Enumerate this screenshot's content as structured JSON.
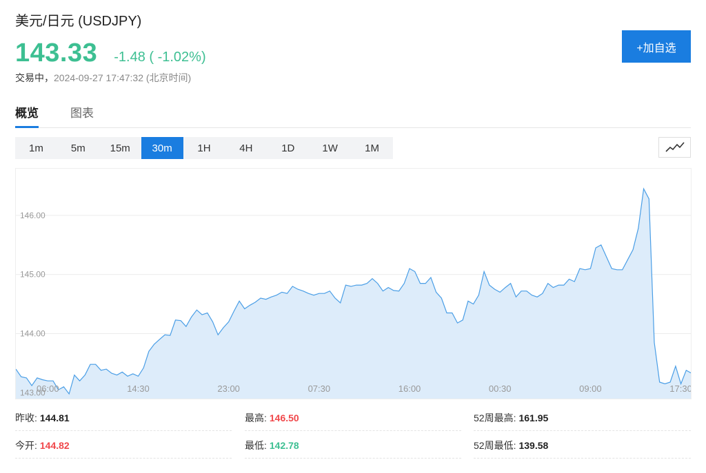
{
  "header": {
    "title": "美元/日元  (USDJPY)",
    "price": "143.33",
    "change": "-1.48 ( -1.02%)",
    "status_label": "交易中，",
    "timestamp": "2024-09-27 17:47:32  (北京时间)",
    "add_button": "+加自选"
  },
  "tabs": [
    {
      "label": "概览",
      "active": true
    },
    {
      "label": "图表",
      "active": false
    }
  ],
  "intervals": [
    {
      "label": "1m",
      "active": false
    },
    {
      "label": "5m",
      "active": false
    },
    {
      "label": "15m",
      "active": false
    },
    {
      "label": "30m",
      "active": true
    },
    {
      "label": "1H",
      "active": false
    },
    {
      "label": "4H",
      "active": false
    },
    {
      "label": "1D",
      "active": false
    },
    {
      "label": "1W",
      "active": false
    },
    {
      "label": "1M",
      "active": false
    }
  ],
  "chart_type_icon": "line-chart-icon",
  "colors": {
    "accent": "#1a7de0",
    "up": "#f0474a",
    "down": "#3dbf92",
    "line": "#4a9ee6",
    "fill": "#ddecfa"
  },
  "chart_data": {
    "type": "area",
    "ylim": [
      142.9,
      146.65
    ],
    "yticks": [
      "143.00",
      "144.00",
      "145.00",
      "146.00"
    ],
    "ytick_values": [
      143.0,
      144.0,
      145.0,
      146.0
    ],
    "xticks": [
      "06:00",
      "14:30",
      "23:00",
      "07:30",
      "16:00",
      "00:30",
      "09:00",
      "17:30"
    ],
    "xtick_index": [
      6,
      23,
      40,
      57,
      74,
      91,
      108,
      125
    ],
    "grid": true,
    "values": [
      143.4,
      143.27,
      143.25,
      143.12,
      143.25,
      143.22,
      143.2,
      143.2,
      143.05,
      143.1,
      142.98,
      143.3,
      143.2,
      143.3,
      143.48,
      143.48,
      143.38,
      143.4,
      143.33,
      143.3,
      143.35,
      143.28,
      143.32,
      143.28,
      143.42,
      143.7,
      143.82,
      143.9,
      143.98,
      143.97,
      144.23,
      144.22,
      144.12,
      144.28,
      144.4,
      144.32,
      144.35,
      144.2,
      143.98,
      144.1,
      144.2,
      144.38,
      144.55,
      144.42,
      144.48,
      144.53,
      144.6,
      144.58,
      144.62,
      144.65,
      144.7,
      144.68,
      144.8,
      144.75,
      144.72,
      144.68,
      144.65,
      144.68,
      144.68,
      144.72,
      144.6,
      144.52,
      144.82,
      144.8,
      144.82,
      144.82,
      144.85,
      144.93,
      144.85,
      144.72,
      144.78,
      144.73,
      144.72,
      144.85,
      145.1,
      145.05,
      144.85,
      144.85,
      144.95,
      144.7,
      144.6,
      144.35,
      144.35,
      144.18,
      144.23,
      144.55,
      144.5,
      144.65,
      145.05,
      144.82,
      144.75,
      144.7,
      144.78,
      144.85,
      144.62,
      144.72,
      144.72,
      144.65,
      144.62,
      144.68,
      144.85,
      144.78,
      144.82,
      144.82,
      144.92,
      144.88,
      145.1,
      145.08,
      145.1,
      145.45,
      145.5,
      145.3,
      145.1,
      145.08,
      145.08,
      145.25,
      145.42,
      145.78,
      146.45,
      146.28,
      143.85,
      143.18,
      143.15,
      143.18,
      143.45,
      143.15,
      143.38,
      143.33
    ]
  },
  "stats": {
    "prev_close_label": "昨收:",
    "prev_close": "144.81",
    "open_label": "今开:",
    "open": "144.82",
    "high_label": "最高:",
    "high": "146.50",
    "low_label": "最低:",
    "low": "142.78",
    "w52_high_label": "52周最高:",
    "w52_high": "161.95",
    "w52_low_label": "52周最低:",
    "w52_low": "139.58"
  }
}
